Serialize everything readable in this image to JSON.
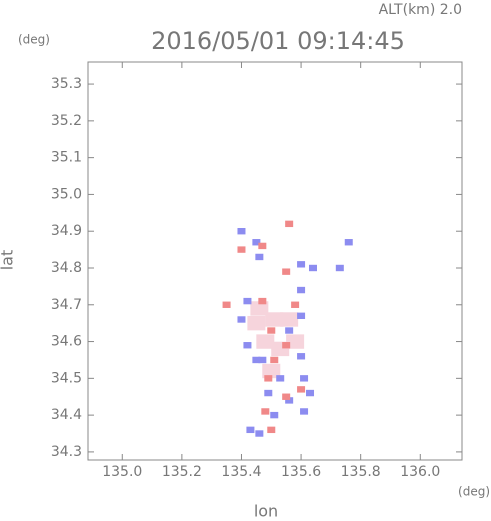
{
  "chart_data": {
    "type": "scatter",
    "header": "ALT(km)  2.0",
    "title": "2016/05/01 09:14:45",
    "y_unit": "(deg)",
    "x_unit": "(deg)",
    "x_label": "lon",
    "y_label": "lat",
    "xlim": [
      134.885,
      136.14
    ],
    "ylim": [
      34.278,
      35.36
    ],
    "xticks": [
      {
        "value": 135.0,
        "label": "135.0"
      },
      {
        "value": 135.2,
        "label": "135.2"
      },
      {
        "value": 135.4,
        "label": "135.4"
      },
      {
        "value": 135.6,
        "label": "135.6"
      },
      {
        "value": 135.8,
        "label": "135.8"
      },
      {
        "value": 136.0,
        "label": "136.0"
      }
    ],
    "yticks": [
      34.3,
      34.4,
      34.5,
      34.6,
      34.7,
      34.8,
      34.9,
      {
        "value": 35.0,
        "label": "35.0"
      },
      35.1,
      35.2,
      35.3
    ],
    "series": [
      {
        "color": "#f6d4dc",
        "x": [
          135.51,
          135.48,
          135.56,
          135.45,
          135.53,
          135.46,
          135.58,
          135.5
        ],
        "y": [
          34.66,
          34.6,
          34.66,
          34.65,
          34.58,
          34.69,
          34.6,
          34.52
        ]
      },
      {
        "color": "#8c8cf0",
        "x": [
          135.4,
          135.45,
          135.46,
          135.6,
          135.64,
          135.73,
          135.76,
          135.42,
          135.4,
          135.6,
          135.56,
          135.42,
          135.47,
          135.6,
          135.53,
          135.61,
          135.49,
          135.56,
          135.61,
          135.51,
          135.46,
          135.43,
          135.45,
          135.63,
          135.6
        ],
        "y": [
          34.9,
          34.87,
          34.83,
          34.81,
          34.8,
          34.8,
          34.87,
          34.71,
          34.66,
          34.67,
          34.63,
          34.59,
          34.55,
          34.56,
          34.5,
          34.5,
          34.46,
          34.44,
          34.41,
          34.4,
          34.35,
          34.36,
          34.55,
          34.46,
          34.74
        ]
      },
      {
        "color": "#f08888",
        "x": [
          135.56,
          135.47,
          135.35,
          135.5,
          135.55,
          135.51,
          135.49,
          135.55,
          135.48,
          135.6,
          135.47,
          135.58,
          135.4,
          135.55,
          135.5
        ],
        "y": [
          34.92,
          34.86,
          34.7,
          34.63,
          34.59,
          34.55,
          34.5,
          34.45,
          34.41,
          34.47,
          34.71,
          34.7,
          34.85,
          34.79,
          34.36
        ]
      }
    ]
  }
}
